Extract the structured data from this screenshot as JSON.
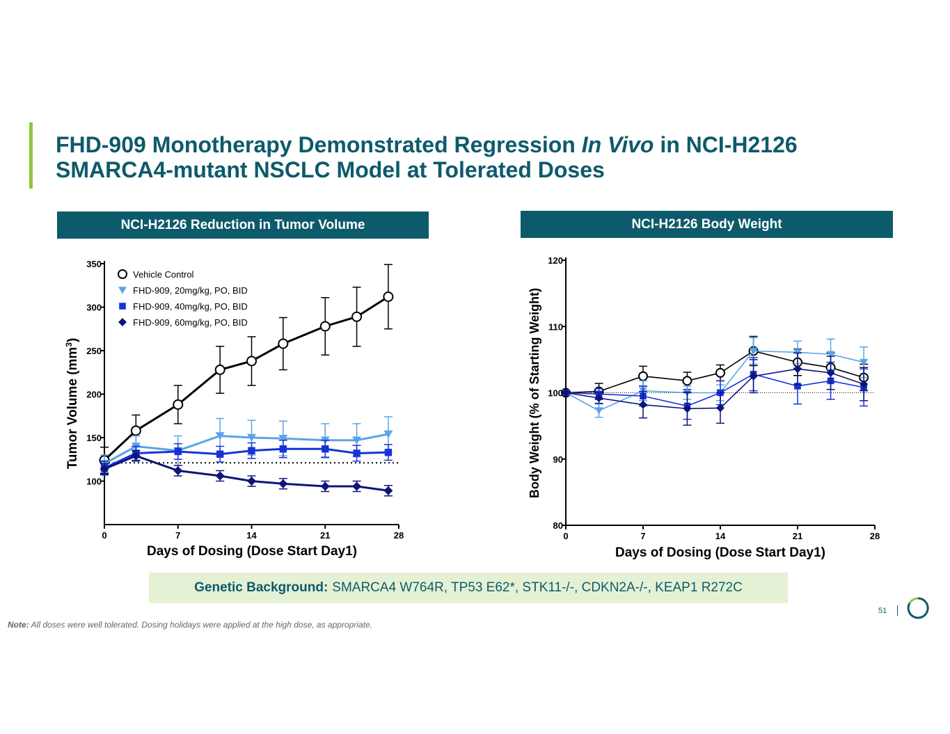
{
  "title": {
    "part1": "FHD-909 Monotherapy Demonstrated Regression ",
    "italic": "In Vivo",
    "part2": " in NCI-H2126 SMARCA4-mutant NSCLC Model at Tolerated Doses"
  },
  "left_panel": {
    "header": "NCI-H2126 Reduction in Tumor Volume"
  },
  "right_panel": {
    "header": "NCI-H2126 Body Weight"
  },
  "genetic": {
    "label": "Genetic Background:",
    "value": "SMARCA4 W764R, TP53 E62*, STK11-/-, CDKN2A-/-, KEAP1 R272C"
  },
  "note": {
    "label": "Note:",
    "text": "All doses were well tolerated. Dosing holidays were applied at the high dose, as appropriate."
  },
  "page_number": "51",
  "colors": {
    "brand": "#0d5a6b",
    "accent": "#8cc63f",
    "vehicle": "#000000",
    "dose20": "#5ba3e8",
    "dose40": "#1633d8",
    "dose60": "#0f1478"
  },
  "chart_data": [
    {
      "type": "line",
      "title": "NCI-H2126 Reduction in Tumor Volume",
      "xlabel": "Days of Dosing (Dose Start Day1)",
      "ylabel_main": "Tumor Volume (mm",
      "ylabel_sup": "3",
      "ylabel_end": ")",
      "xlim": [
        0,
        28
      ],
      "ylim": [
        50,
        350
      ],
      "xticks": [
        0,
        7,
        14,
        21,
        28
      ],
      "yticks": [
        100,
        150,
        200,
        250,
        300,
        350
      ],
      "reference_line": 121,
      "legend_position": "top-left",
      "series": [
        {
          "name": "Vehicle Control",
          "color": "#000000",
          "marker": "circle-open",
          "x": [
            0,
            3,
            7,
            11,
            14,
            17,
            21,
            24,
            27
          ],
          "y": [
            124,
            158,
            188,
            228,
            238,
            258,
            278,
            289,
            312
          ],
          "err": [
            15,
            18,
            22,
            27,
            28,
            30,
            33,
            34,
            37
          ]
        },
        {
          "name": "FHD-909, 20mg/kg, PO, BID",
          "color": "#5ba3e8",
          "marker": "triangle-down",
          "x": [
            0,
            3,
            7,
            11,
            14,
            17,
            21,
            24,
            27
          ],
          "y": [
            120,
            140,
            135,
            152,
            150,
            149,
            147,
            147,
            154
          ],
          "err": [
            10,
            12,
            17,
            20,
            20,
            20,
            19,
            19,
            20
          ]
        },
        {
          "name": "FHD-909, 40mg/kg, PO, BID",
          "color": "#1633d8",
          "marker": "square",
          "x": [
            0,
            3,
            7,
            11,
            14,
            17,
            21,
            24,
            27
          ],
          "y": [
            115,
            132,
            134,
            131,
            135,
            137,
            137,
            132,
            133
          ],
          "err": [
            8,
            8,
            9,
            9,
            9,
            10,
            10,
            9,
            9
          ]
        },
        {
          "name": "FHD-909, 60mg/kg, PO, BID",
          "color": "#0f1478",
          "marker": "diamond",
          "x": [
            0,
            3,
            7,
            11,
            14,
            17,
            21,
            24,
            27
          ],
          "y": [
            114,
            129,
            112,
            106,
            100,
            97,
            94,
            94,
            89
          ],
          "err": [
            6,
            6,
            6,
            6,
            6,
            6,
            6,
            6,
            6
          ]
        }
      ]
    },
    {
      "type": "line",
      "title": "NCI-H2126 Body Weight",
      "xlabel": "Days of Dosing (Dose Start Day1)",
      "ylabel": "Body Weight (% of Starting Weight)",
      "xlim": [
        0,
        28
      ],
      "ylim": [
        80,
        120
      ],
      "xticks": [
        0,
        7,
        14,
        21,
        28
      ],
      "yticks": [
        80,
        90,
        100,
        110,
        120
      ],
      "reference_line": 100,
      "series": [
        {
          "name": "Vehicle Control",
          "color": "#000000",
          "marker": "circle-open",
          "x": [
            0,
            3,
            7,
            11,
            14,
            17,
            21,
            24,
            27
          ],
          "y": [
            100,
            100.2,
            102.5,
            101.8,
            103,
            106.3,
            104.6,
            103.8,
            102.3
          ],
          "err": [
            0,
            1.2,
            1.5,
            1.3,
            1.2,
            2.2,
            2.0,
            2.2,
            2.0
          ]
        },
        {
          "name": "FHD-909, 20mg/kg, PO, BID",
          "color": "#5ba3e8",
          "marker": "triangle-down",
          "x": [
            0,
            3,
            7,
            11,
            14,
            17,
            21,
            24,
            27
          ],
          "y": [
            100,
            97.3,
            100.3,
            100,
            100,
            106.3,
            106.1,
            105.8,
            104.6
          ],
          "err": [
            0,
            1.0,
            1.5,
            1.0,
            1.2,
            2.0,
            1.7,
            2.3,
            2.3
          ]
        },
        {
          "name": "FHD-909, 40mg/kg, PO, BID",
          "color": "#1633d8",
          "marker": "square",
          "x": [
            0,
            3,
            7,
            11,
            14,
            17,
            21,
            24,
            27
          ],
          "y": [
            100,
            99.8,
            99.5,
            98,
            100,
            102.8,
            101,
            101.8,
            100.8
          ],
          "err": [
            0,
            0.8,
            1.5,
            2.0,
            1.8,
            2.5,
            2.7,
            2.8,
            2.8
          ]
        },
        {
          "name": "FHD-909, 60mg/kg, PO, BID",
          "color": "#0f1478",
          "marker": "diamond",
          "x": [
            0,
            3,
            7,
            11,
            14,
            17,
            21,
            24,
            27
          ],
          "y": [
            100,
            99.2,
            98.2,
            97.6,
            97.7,
            102.5,
            103.6,
            103,
            101.3
          ],
          "err": [
            0,
            0.8,
            2.0,
            2.5,
            2.3,
            2.5,
            2.4,
            2.5,
            2.5
          ]
        }
      ]
    }
  ]
}
